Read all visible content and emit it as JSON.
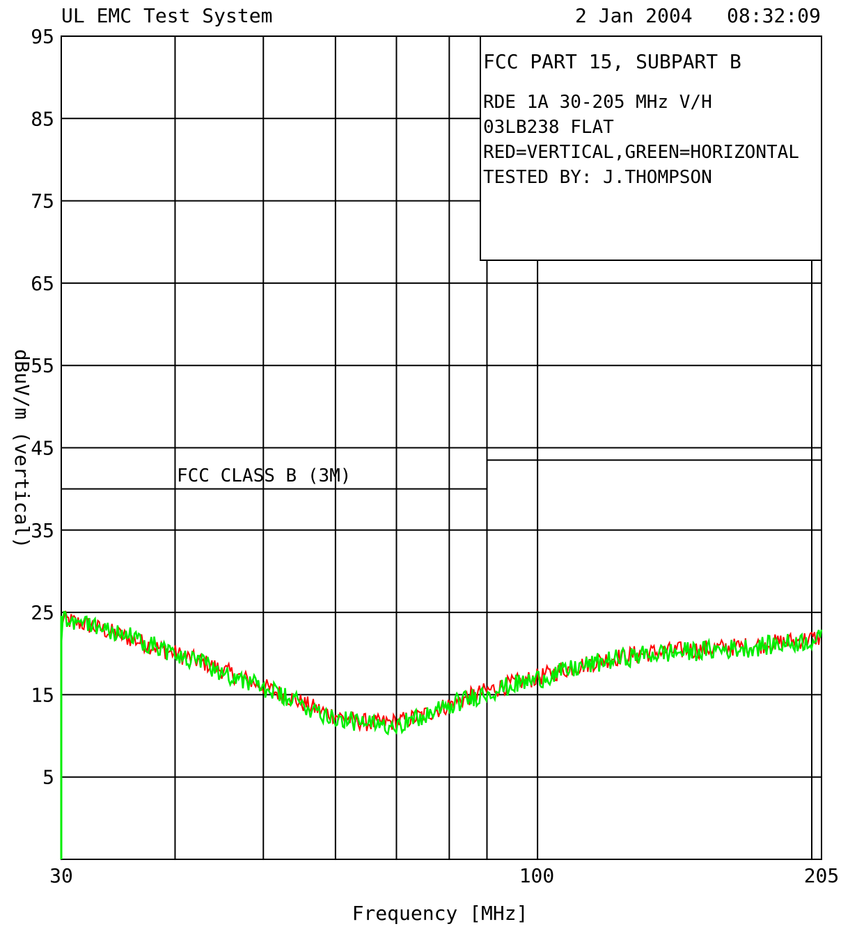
{
  "header": {
    "system_title": "UL EMC Test System",
    "date": "2 Jan 2004",
    "time": "08:32:09"
  },
  "legend_box": {
    "title": "FCC PART 15, SUBPART B",
    "lines": [
      "RDE 1A 30-205 MHz V/H",
      "03LB238 FLAT",
      "RED=VERTICAL,GREEN=HORIZONTAL",
      "TESTED BY: J.THOMPSON"
    ]
  },
  "limit_label": "FCC CLASS B (3M)",
  "chart_data": {
    "type": "line",
    "title": "",
    "xlabel": "Frequency [MHz]",
    "ylabel": "dBuV/m (vertical axis label cut off)",
    "xscale": "log",
    "xlim": [
      30,
      205
    ],
    "ylim": [
      -5,
      95
    ],
    "x_tick_labels": [
      "30",
      "100",
      "205"
    ],
    "x_grid": [
      30,
      40,
      50,
      60,
      70,
      80,
      88,
      100,
      200,
      205
    ],
    "y_ticks": [
      95,
      85,
      75,
      65,
      55,
      45,
      35,
      25,
      15,
      5
    ],
    "grid": true,
    "limit_line": {
      "name": "FCC CLASS B (3M)",
      "points": [
        [
          30,
          40
        ],
        [
          88,
          40
        ],
        [
          88,
          43.5
        ],
        [
          205,
          43.5
        ]
      ]
    },
    "series": [
      {
        "color": "#ff0000",
        "x": [
          30,
          32,
          34,
          36,
          38,
          40,
          43,
          46,
          50,
          54,
          58,
          62,
          66,
          70,
          74,
          78,
          82,
          86,
          90,
          95,
          100,
          110,
          120,
          130,
          140,
          150,
          160,
          170,
          180,
          190,
          200,
          205
        ],
        "y": [
          24.2,
          23.5,
          22.6,
          21.7,
          20.8,
          20.0,
          18.9,
          17.6,
          16.0,
          14.4,
          13.0,
          12.0,
          11.5,
          11.7,
          12.3,
          13.3,
          14.3,
          15.1,
          15.8,
          16.5,
          17.1,
          18.4,
          19.4,
          20.0,
          20.3,
          20.5,
          20.7,
          20.9,
          21.2,
          21.5,
          21.8,
          22.0
        ]
      },
      {
        "color": "#00ee00",
        "x": [
          30,
          32,
          34,
          36,
          38,
          40,
          43,
          46,
          50,
          54,
          58,
          62,
          66,
          70,
          74,
          78,
          82,
          86,
          90,
          95,
          100,
          110,
          120,
          130,
          140,
          150,
          160,
          170,
          180,
          190,
          200,
          205
        ],
        "y": [
          24.4,
          23.7,
          22.8,
          21.9,
          21.0,
          19.8,
          18.7,
          17.4,
          15.8,
          14.2,
          12.8,
          11.8,
          11.3,
          11.5,
          12.1,
          13.1,
          14.1,
          14.9,
          15.6,
          16.3,
          16.9,
          18.2,
          19.2,
          19.8,
          20.1,
          20.3,
          20.5,
          20.7,
          21.0,
          21.3,
          21.6,
          21.8
        ]
      }
    ]
  }
}
